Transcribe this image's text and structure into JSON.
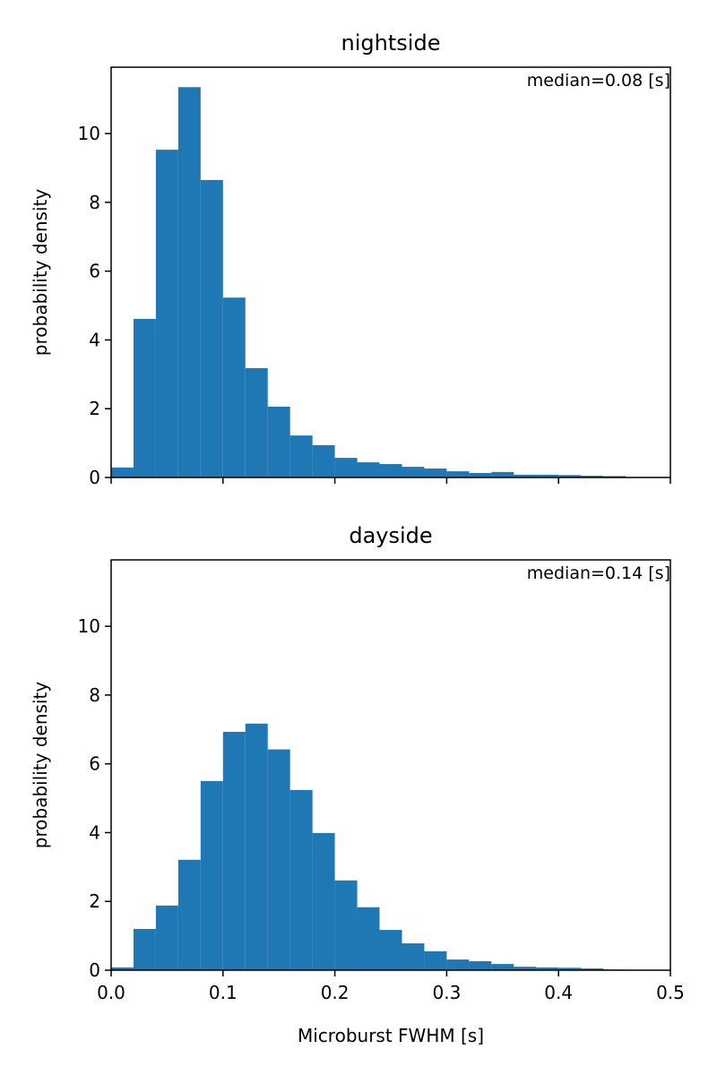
{
  "chart_data": [
    {
      "type": "histogram",
      "title": "nightside",
      "annotation": "median=0.08 [s]",
      "ylabel": "probability density",
      "color": "#1f77b4",
      "bins": [
        0,
        0.02,
        0.04,
        0.06,
        0.08,
        0.1,
        0.12,
        0.14,
        0.16,
        0.18,
        0.2,
        0.22,
        0.24,
        0.26,
        0.28,
        0.3,
        0.32,
        0.34,
        0.36,
        0.38,
        0.4,
        0.42,
        0.44,
        0.46,
        0.48,
        0.5
      ],
      "values": [
        0.29,
        4.61,
        9.53,
        11.35,
        8.65,
        5.23,
        3.18,
        2.06,
        1.22,
        0.94,
        0.57,
        0.44,
        0.39,
        0.31,
        0.26,
        0.18,
        0.13,
        0.16,
        0.08,
        0.08,
        0.07,
        0.05,
        0.04,
        0,
        0
      ],
      "xlim": [
        0,
        0.5
      ],
      "ylim": [
        0,
        11.93
      ],
      "xticks": [
        0,
        0.1,
        0.2,
        0.3,
        0.4,
        0.5
      ],
      "show_xtick_labels": false,
      "yticks": [
        0,
        2,
        4,
        6,
        8,
        10
      ]
    },
    {
      "type": "histogram",
      "title": "dayside",
      "annotation": "median=0.14 [s]",
      "ylabel": "probability density",
      "xlabel": "Microburst FWHM [s]",
      "color": "#1f77b4",
      "bins": [
        0,
        0.02,
        0.04,
        0.06,
        0.08,
        0.1,
        0.12,
        0.14,
        0.16,
        0.18,
        0.2,
        0.22,
        0.24,
        0.26,
        0.28,
        0.3,
        0.32,
        0.34,
        0.36,
        0.38,
        0.4,
        0.42,
        0.44,
        0.46,
        0.48,
        0.5
      ],
      "values": [
        0.08,
        1.2,
        1.88,
        3.21,
        5.5,
        6.93,
        7.17,
        6.42,
        5.24,
        3.99,
        2.61,
        1.83,
        1.17,
        0.78,
        0.55,
        0.31,
        0.26,
        0.18,
        0.1,
        0.08,
        0.07,
        0.05,
        0.02,
        0,
        0
      ],
      "xlim": [
        0,
        0.5
      ],
      "ylim": [
        0,
        11.93
      ],
      "xticks": [
        {
          "value": 0,
          "label": "0.0"
        },
        0.1,
        0.2,
        0.3,
        0.4,
        0.5
      ],
      "show_xtick_labels": true,
      "yticks": [
        0,
        2,
        4,
        6,
        8,
        10
      ]
    }
  ]
}
